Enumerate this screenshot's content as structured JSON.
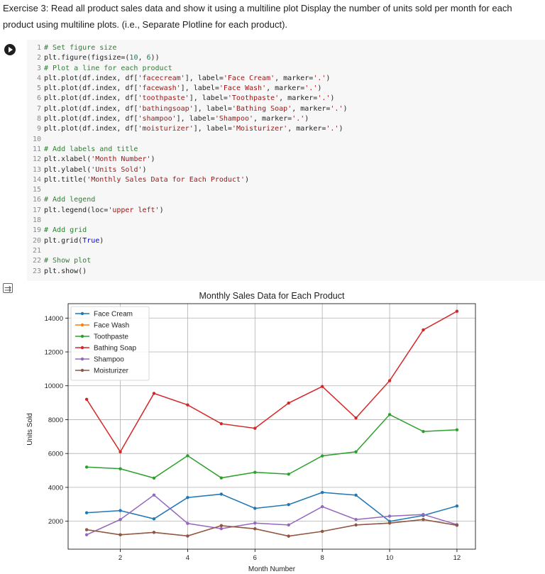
{
  "exercise": {
    "text": "Exercise 3: Read all product sales data and show it using a multiline plot Display the number of units sold per month for each product using multiline plots. (i.e., Separate Plotline for each product)."
  },
  "cell": {
    "run_icon": "play-icon",
    "output_icon": "output-toggle-icon",
    "code_lines": [
      "# Set figure size",
      "plt.figure(figsize=(10, 6))",
      "# Plot a line for each product",
      "plt.plot(df.index, df['facecream'], label='Face Cream', marker='.')",
      "plt.plot(df.index, df['facewash'], label='Face Wash', marker='.')",
      "plt.plot(df.index, df['toothpaste'], label='Toothpaste', marker='.')",
      "plt.plot(df.index, df['bathingsoap'], label='Bathing Soap', marker='.')",
      "plt.plot(df.index, df['shampoo'], label='Shampoo', marker='.')",
      "plt.plot(df.index, df['moisturizer'], label='Moisturizer', marker='.')",
      "",
      "# Add labels and title",
      "plt.xlabel('Month Number')",
      "plt.ylabel('Units Sold')",
      "plt.title('Monthly Sales Data for Each Product')",
      "",
      "# Add legend",
      "plt.legend(loc='upper left')",
      "",
      "# Add grid",
      "plt.grid(True)",
      "",
      "# Show plot",
      "plt.show()"
    ]
  },
  "chart_data": {
    "type": "line",
    "title": "Monthly Sales Data for Each Product",
    "xlabel": "Month Number",
    "ylabel": "Units Sold",
    "x": [
      1,
      2,
      3,
      4,
      5,
      6,
      7,
      8,
      9,
      10,
      11,
      12
    ],
    "xlim": [
      0.45,
      12.55
    ],
    "ylim": [
      350,
      14850
    ],
    "xticks": [
      2,
      4,
      6,
      8,
      10,
      12
    ],
    "yticks": [
      2000,
      4000,
      6000,
      8000,
      10000,
      12000,
      14000
    ],
    "grid": true,
    "legend_loc": "upper left",
    "series": [
      {
        "name": "Face Cream",
        "color": "#1f77b4",
        "values": [
          2500,
          2630,
          2140,
          3400,
          3600,
          2760,
          2980,
          3700,
          3540,
          1990,
          2340,
          2900
        ]
      },
      {
        "name": "Face Wash",
        "color": "#ff7f0e",
        "values": [
          1500,
          1200,
          1340,
          1130,
          1740,
          1555,
          1120,
          1400,
          1780,
          1890,
          2100,
          1760
        ]
      },
      {
        "name": "Toothpaste",
        "color": "#2ca02c",
        "values": [
          5200,
          5100,
          4550,
          5870,
          4560,
          4890,
          4780,
          5860,
          6100,
          8300,
          7300,
          7400
        ]
      },
      {
        "name": "Bathing Soap",
        "color": "#d62728",
        "values": [
          9200,
          6100,
          9550,
          8870,
          7760,
          7490,
          8980,
          9960,
          8100,
          10300,
          13300,
          14400
        ]
      },
      {
        "name": "Shampoo",
        "color": "#9467bd",
        "values": [
          1200,
          2100,
          3550,
          1870,
          1560,
          1890,
          1780,
          2860,
          2100,
          2300,
          2400,
          1800
        ]
      },
      {
        "name": "Moisturizer",
        "color": "#8c564b",
        "values": [
          1500,
          1200,
          1340,
          1130,
          1740,
          1555,
          1120,
          1400,
          1780,
          1890,
          2100,
          1760
        ]
      }
    ]
  }
}
